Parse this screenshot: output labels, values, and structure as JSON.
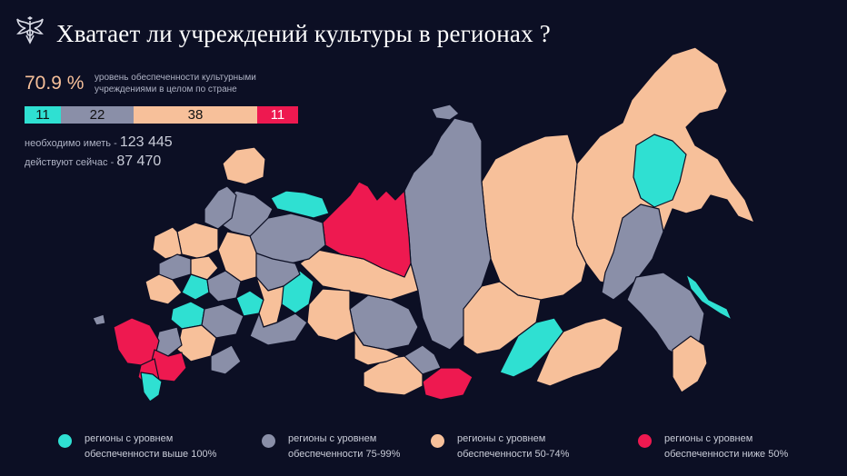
{
  "header": {
    "title": "Хватает ли учреждений культуры в регионах ?"
  },
  "stats": {
    "coverage_value": "70.9 %",
    "coverage_desc": "уровень обеспеченности культурными учреждениями в целом по стране",
    "need_label": "необходимо иметь - ",
    "need_value": "123 445",
    "have_label": "действуют сейчас - ",
    "have_value": "87 470"
  },
  "distribution": [
    {
      "count": "11",
      "color": "#2fe0d2"
    },
    {
      "count": "22",
      "color": "#8a8fa8"
    },
    {
      "count": "38",
      "color": "#f7c09a"
    },
    {
      "count": "11",
      "color": "#ee1950"
    }
  ],
  "legend": [
    {
      "line1": "регионы с уровнем",
      "line2": "обеспеченности выше 100%",
      "color": "#2fe0d2"
    },
    {
      "line1": "регионы с уровнем",
      "line2": "обеспеченности 75-99%",
      "color": "#8a8fa8"
    },
    {
      "line1": "регионы с уровнем",
      "line2": "обеспеченности 50-74%",
      "color": "#f7c09a"
    },
    {
      "line1": "регионы с уровнем",
      "line2": "обеспеченности ниже 50%",
      "color": "#ee1950"
    }
  ],
  "colors": {
    "background": "#0c0f24",
    "teal": "#2fe0d2",
    "gray": "#8a8fa8",
    "peach": "#f7c09a",
    "red": "#ee1950",
    "border": "#0c0f24"
  }
}
